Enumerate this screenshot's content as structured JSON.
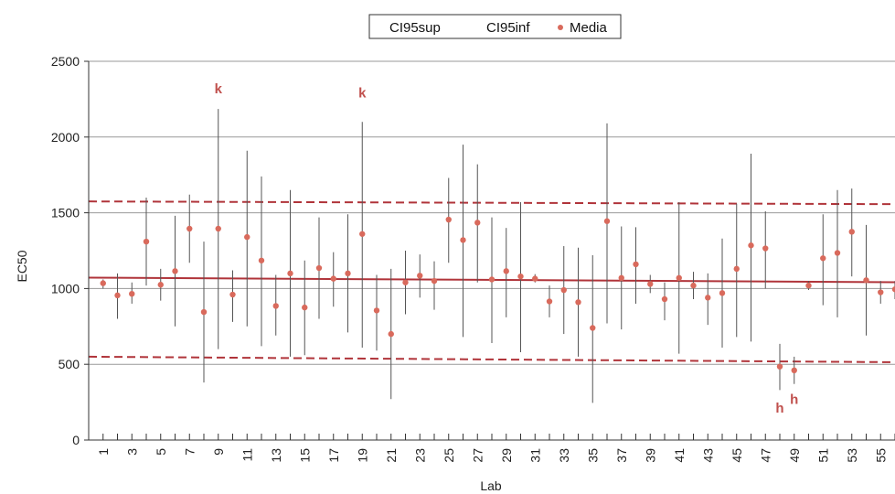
{
  "chart_data": {
    "type": "scatter",
    "legend": {
      "position": "top-center",
      "entries": [
        "CI95sup",
        "CI95inf",
        "Media"
      ]
    },
    "xlabel": "Lab",
    "ylabel": "EC50",
    "ylim": [
      0,
      2500
    ],
    "yticks": [
      0,
      500,
      1000,
      1500,
      2000,
      2500
    ],
    "xlim": [
      0,
      56
    ],
    "xticks": [
      1,
      3,
      5,
      7,
      9,
      11,
      13,
      15,
      17,
      19,
      21,
      23,
      25,
      27,
      29,
      31,
      33,
      35,
      37,
      39,
      41,
      43,
      45,
      47,
      49,
      51,
      53,
      55
    ],
    "grid": "horizontal",
    "colors": {
      "media": "#d96a5c",
      "reference": "#b0343a",
      "interval": "#555555",
      "grid": "#999999",
      "annotation": "#c0504d"
    },
    "reference_lines": {
      "mean": 1060,
      "upper_limit": 1575,
      "lower_limit": 550
    },
    "series": [
      {
        "name": "Media",
        "x": [
          1,
          2,
          3,
          4,
          5,
          6,
          7,
          8,
          9,
          10,
          11,
          12,
          13,
          14,
          15,
          16,
          17,
          18,
          19,
          20,
          21,
          22,
          23,
          24,
          25,
          26,
          27,
          28,
          29,
          30,
          31,
          32,
          33,
          34,
          35,
          36,
          37,
          38,
          39,
          40,
          41,
          42,
          43,
          44,
          45,
          46,
          47,
          48,
          49,
          50,
          51,
          52,
          53,
          54,
          55,
          56
        ],
        "y": [
          1035,
          955,
          965,
          1310,
          1025,
          1115,
          1395,
          845,
          1395,
          960,
          1340,
          1185,
          885,
          1100,
          875,
          1135,
          1065,
          1100,
          1360,
          855,
          700,
          1040,
          1085,
          1050,
          1455,
          1320,
          1435,
          1060,
          1115,
          1080,
          1065,
          915,
          990,
          910,
          740,
          1445,
          1070,
          1160,
          1030,
          930,
          1070,
          1020,
          940,
          970,
          1130,
          1285,
          1265,
          485,
          460,
          1020,
          1200,
          1235,
          1375,
          1055,
          975,
          995
        ]
      }
    ],
    "ci95sup": [
      1060,
      1100,
      1040,
      1600,
      1130,
      1480,
      1620,
      1310,
      2185,
      1120,
      1910,
      1740,
      1090,
      1650,
      1185,
      1470,
      1240,
      1490,
      2100,
      1090,
      1130,
      1250,
      1225,
      1180,
      1730,
      1950,
      1820,
      1470,
      1400,
      1570,
      1095,
      1020,
      1280,
      1270,
      1220,
      2090,
      1410,
      1405,
      1090,
      1040,
      1570,
      1110,
      1100,
      1330,
      1560,
      1890,
      1510,
      635,
      550,
      1050,
      1490,
      1650,
      1660,
      1420,
      1050,
      1050
    ],
    "ci95inf": [
      1000,
      800,
      900,
      1020,
      920,
      750,
      1170,
      380,
      600,
      780,
      750,
      620,
      690,
      550,
      560,
      800,
      880,
      710,
      610,
      590,
      270,
      830,
      940,
      860,
      1170,
      680,
      1040,
      640,
      810,
      580,
      1040,
      810,
      700,
      550,
      245,
      770,
      730,
      900,
      970,
      790,
      570,
      930,
      760,
      610,
      680,
      650,
      1000,
      330,
      370,
      990,
      890,
      810,
      1080,
      690,
      900,
      930
    ],
    "annotations": [
      {
        "text": "k",
        "x": 9,
        "y": 2290
      },
      {
        "text": "k",
        "x": 19,
        "y": 2260
      },
      {
        "text": "h",
        "x": 48,
        "y": 180
      },
      {
        "text": "h",
        "x": 49,
        "y": 240
      }
    ]
  }
}
